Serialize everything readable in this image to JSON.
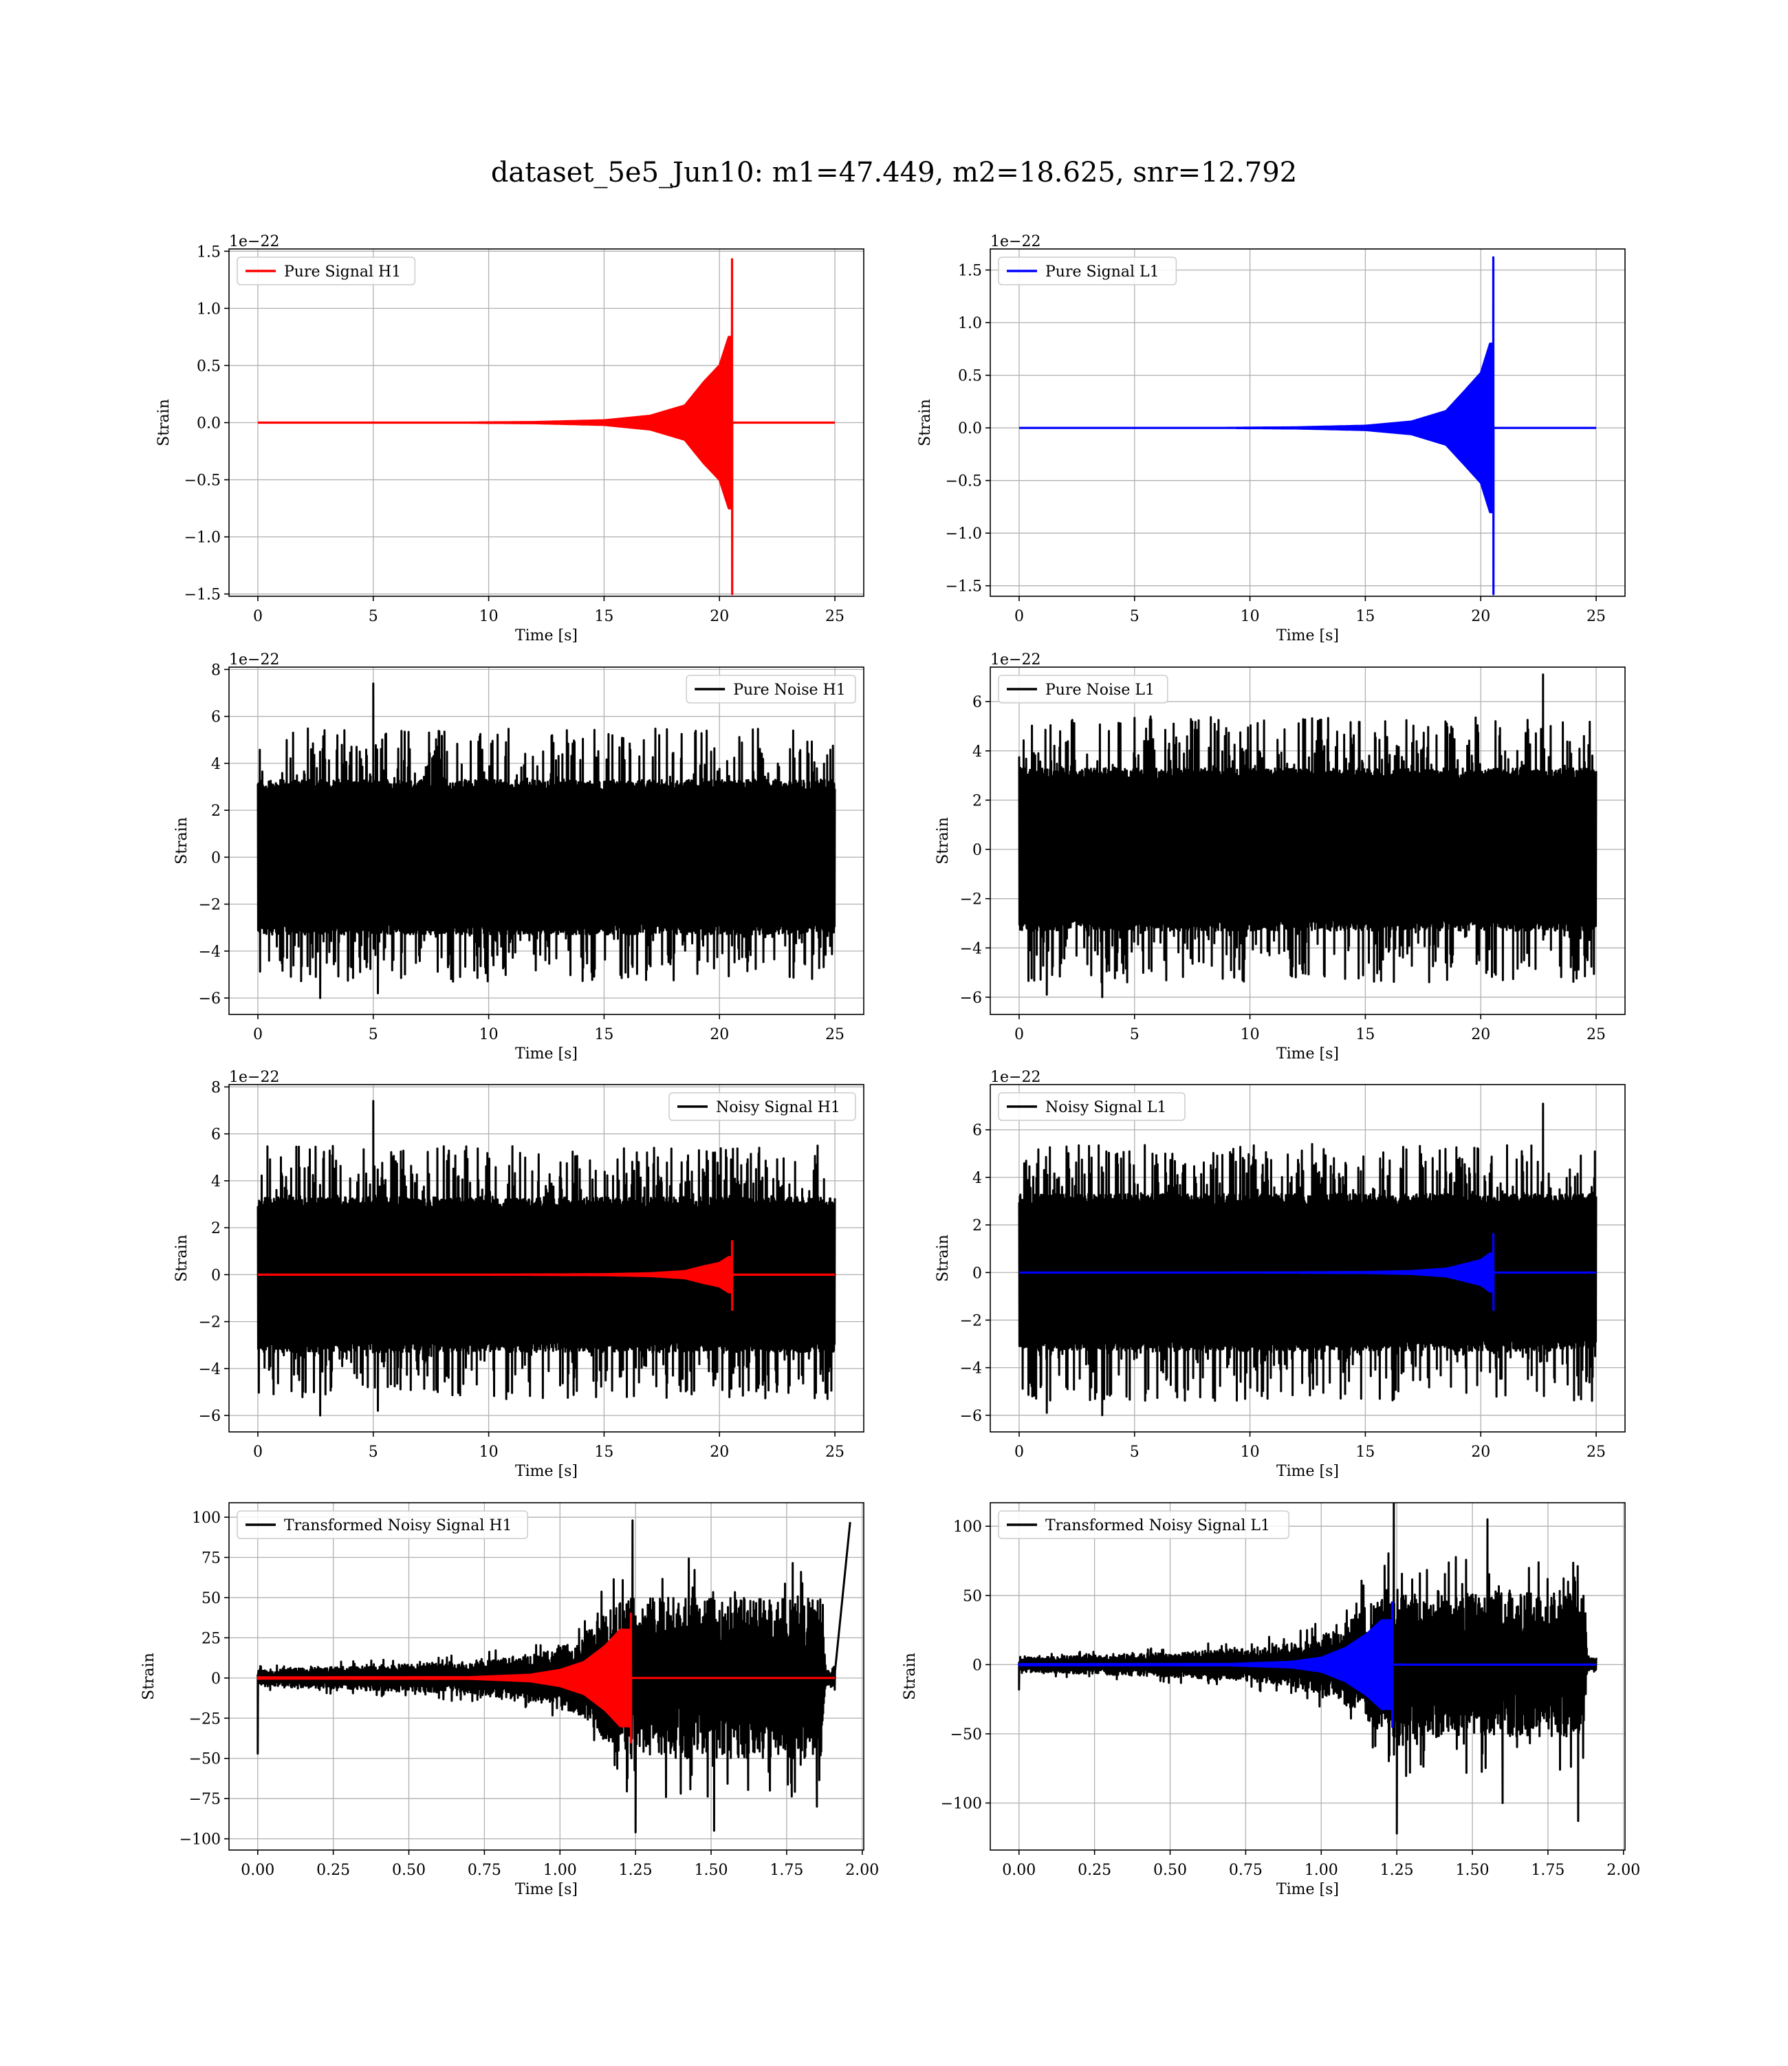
{
  "figure": {
    "suptitle": "dataset_5e5_Jun10: m1=47.449, m2=18.625, snr=12.792"
  },
  "colors": {
    "h1_signal": "#ff0000",
    "l1_signal": "#0000ff",
    "noise": "#000000",
    "grid": "#b0b0b0"
  },
  "chart_data": [
    {
      "type": "line",
      "panel": "pure-signal-h1",
      "position": "row 1, left",
      "title": "",
      "xlabel": "Time [s]",
      "ylabel": "Strain",
      "offset_text": "1e−22",
      "xlim": [
        -1.25,
        26.25
      ],
      "ylim": [
        -1.52,
        1.52
      ],
      "xticks": [
        0,
        5,
        10,
        15,
        20,
        25
      ],
      "xtick_labels": [
        "0",
        "5",
        "10",
        "15",
        "20",
        "25"
      ],
      "yticks": [
        -1.5,
        -1.0,
        -0.5,
        0.0,
        0.5,
        1.0,
        1.5
      ],
      "ytick_labels": [
        "−1.5",
        "−1.0",
        "−0.5",
        "0.0",
        "0.5",
        "1.0",
        "1.5"
      ],
      "grid": true,
      "legend_loc": "upper left",
      "series": [
        {
          "name": "Pure Signal H1",
          "color": "#ff0000",
          "kind": "chirp",
          "t_start": 0,
          "t_end": 25,
          "merger_time": 20.55,
          "peak_pos": 1.43,
          "peak_neg": -1.5,
          "early_envelope": [
            [
              12,
              0.005
            ],
            [
              15,
              0.02
            ],
            [
              17,
              0.06
            ],
            [
              18.5,
              0.15
            ],
            [
              19.3,
              0.35
            ],
            [
              20.0,
              0.5
            ],
            [
              20.4,
              0.75
            ]
          ]
        }
      ]
    },
    {
      "type": "line",
      "panel": "pure-signal-l1",
      "position": "row 1, right",
      "title": "",
      "xlabel": "Time [s]",
      "ylabel": "Strain",
      "offset_text": "1e−22",
      "xlim": [
        -1.25,
        26.25
      ],
      "ylim": [
        -1.6,
        1.7
      ],
      "xticks": [
        0,
        5,
        10,
        15,
        20,
        25
      ],
      "xtick_labels": [
        "0",
        "5",
        "10",
        "15",
        "20",
        "25"
      ],
      "yticks": [
        -1.5,
        -1.0,
        -0.5,
        0.0,
        0.5,
        1.0,
        1.5
      ],
      "ytick_labels": [
        "−1.5",
        "−1.0",
        "−0.5",
        "0.0",
        "0.5",
        "1.0",
        "1.5"
      ],
      "grid": true,
      "legend_loc": "upper left",
      "series": [
        {
          "name": "Pure Signal L1",
          "color": "#0000ff",
          "kind": "chirp",
          "t_start": 0,
          "t_end": 25,
          "merger_time": 20.55,
          "peak_pos": 1.62,
          "peak_neg": -1.58,
          "early_envelope": [
            [
              12,
              0.005
            ],
            [
              15,
              0.02
            ],
            [
              17,
              0.06
            ],
            [
              18.5,
              0.16
            ],
            [
              19.3,
              0.35
            ],
            [
              20.0,
              0.52
            ],
            [
              20.4,
              0.8
            ]
          ]
        }
      ]
    },
    {
      "type": "line",
      "panel": "pure-noise-h1",
      "position": "row 2, left",
      "title": "",
      "xlabel": "Time [s]",
      "ylabel": "Strain",
      "offset_text": "1e−22",
      "xlim": [
        -1.25,
        26.25
      ],
      "ylim": [
        -6.7,
        8.1
      ],
      "xticks": [
        0,
        5,
        10,
        15,
        20,
        25
      ],
      "xtick_labels": [
        "0",
        "5",
        "10",
        "15",
        "20",
        "25"
      ],
      "yticks": [
        -6,
        -4,
        -2,
        0,
        2,
        4,
        6,
        8
      ],
      "ytick_labels": [
        "−6",
        "−4",
        "−2",
        "0",
        "2",
        "4",
        "6",
        "8"
      ],
      "grid": true,
      "legend_loc": "upper right",
      "series": [
        {
          "name": "Pure Noise H1",
          "color": "#000000",
          "kind": "noise",
          "t_start": 0,
          "t_end": 25,
          "band": [
            -3.3,
            3.3
          ],
          "spike_max": 5.5,
          "spike_min": -5.3,
          "extremes": [
            [
              5.0,
              7.4
            ],
            [
              2.7,
              -6.0
            ],
            [
              5.2,
              -5.8
            ]
          ]
        }
      ]
    },
    {
      "type": "line",
      "panel": "pure-noise-l1",
      "position": "row 2, right",
      "title": "",
      "xlabel": "Time [s]",
      "ylabel": "Strain",
      "offset_text": "1e−22",
      "xlim": [
        -1.25,
        26.25
      ],
      "ylim": [
        -6.7,
        7.4
      ],
      "xticks": [
        0,
        5,
        10,
        15,
        20,
        25
      ],
      "xtick_labels": [
        "0",
        "5",
        "10",
        "15",
        "20",
        "25"
      ],
      "yticks": [
        -6,
        -4,
        -2,
        0,
        2,
        4,
        6
      ],
      "ytick_labels": [
        "−6",
        "−4",
        "−2",
        "0",
        "2",
        "4",
        "6"
      ],
      "grid": true,
      "legend_loc": "upper left",
      "series": [
        {
          "name": "Pure Noise L1",
          "color": "#000000",
          "kind": "noise",
          "t_start": 0,
          "t_end": 25,
          "band": [
            -3.3,
            3.3
          ],
          "spike_max": 5.4,
          "spike_min": -5.4,
          "extremes": [
            [
              22.7,
              7.1
            ],
            [
              3.6,
              -6.0
            ],
            [
              1.2,
              -5.9
            ]
          ]
        }
      ]
    },
    {
      "type": "line",
      "panel": "noisy-signal-h1",
      "position": "row 3, left",
      "title": "",
      "xlabel": "Time [s]",
      "ylabel": "Strain",
      "offset_text": "1e−22",
      "xlim": [
        -1.25,
        26.25
      ],
      "ylim": [
        -6.7,
        8.1
      ],
      "xticks": [
        0,
        5,
        10,
        15,
        20,
        25
      ],
      "xtick_labels": [
        "0",
        "5",
        "10",
        "15",
        "20",
        "25"
      ],
      "yticks": [
        -6,
        -4,
        -2,
        0,
        2,
        4,
        6,
        8
      ],
      "ytick_labels": [
        "−6",
        "−4",
        "−2",
        "0",
        "2",
        "4",
        "6",
        "8"
      ],
      "grid": true,
      "legend_loc": "upper right",
      "series": [
        {
          "name": "Noisy Signal H1",
          "color": "#000000",
          "kind": "noise",
          "t_start": 0,
          "t_end": 25,
          "band": [
            -3.3,
            3.3
          ],
          "spike_max": 5.5,
          "spike_min": -5.3,
          "extremes": [
            [
              5.0,
              7.4
            ],
            [
              2.7,
              -6.0
            ],
            [
              5.2,
              -5.8
            ]
          ]
        },
        {
          "color": "#ff0000",
          "kind": "chirp",
          "t_start": 0,
          "t_end": 25,
          "merger_time": 20.55,
          "peak_pos": 1.43,
          "peak_neg": -1.5,
          "early_envelope": [
            [
              12,
              0.005
            ],
            [
              15,
              0.02
            ],
            [
              17,
              0.06
            ],
            [
              18.5,
              0.15
            ],
            [
              19.3,
              0.35
            ],
            [
              20.0,
              0.5
            ],
            [
              20.4,
              0.75
            ]
          ]
        }
      ]
    },
    {
      "type": "line",
      "panel": "noisy-signal-l1",
      "position": "row 3, right",
      "title": "",
      "xlabel": "Time [s]",
      "ylabel": "Strain",
      "offset_text": "1e−22",
      "xlim": [
        -1.25,
        26.25
      ],
      "ylim": [
        -6.7,
        7.9
      ],
      "xticks": [
        0,
        5,
        10,
        15,
        20,
        25
      ],
      "xtick_labels": [
        "0",
        "5",
        "10",
        "15",
        "20",
        "25"
      ],
      "yticks": [
        -6,
        -4,
        -2,
        0,
        2,
        4,
        6
      ],
      "ytick_labels": [
        "−6",
        "−4",
        "−2",
        "0",
        "2",
        "4",
        "6"
      ],
      "grid": true,
      "legend_loc": "upper left",
      "series": [
        {
          "name": "Noisy Signal L1",
          "color": "#000000",
          "kind": "noise",
          "t_start": 0,
          "t_end": 25,
          "band": [
            -3.3,
            3.3
          ],
          "spike_max": 5.4,
          "spike_min": -5.4,
          "extremes": [
            [
              22.7,
              7.1
            ],
            [
              3.6,
              -6.0
            ],
            [
              1.2,
              -5.9
            ]
          ]
        },
        {
          "color": "#0000ff",
          "kind": "chirp",
          "t_start": 0,
          "t_end": 25,
          "merger_time": 20.55,
          "peak_pos": 1.62,
          "peak_neg": -1.58,
          "early_envelope": [
            [
              12,
              0.005
            ],
            [
              15,
              0.02
            ],
            [
              17,
              0.06
            ],
            [
              18.5,
              0.16
            ],
            [
              19.3,
              0.35
            ],
            [
              20.0,
              0.52
            ],
            [
              20.4,
              0.8
            ]
          ]
        }
      ]
    },
    {
      "type": "line",
      "panel": "transformed-noisy-signal-h1",
      "position": "row 4, left",
      "title": "",
      "xlabel": "Time [s]",
      "ylabel": "Strain",
      "offset_text": "",
      "xlim": [
        -0.095,
        2.005
      ],
      "ylim": [
        -107,
        109
      ],
      "xticks": [
        0.0,
        0.25,
        0.5,
        0.75,
        1.0,
        1.25,
        1.5,
        1.75,
        2.0
      ],
      "xtick_labels": [
        "0.00",
        "0.25",
        "0.50",
        "0.75",
        "1.00",
        "1.25",
        "1.50",
        "1.75",
        "2.00"
      ],
      "yticks": [
        -100,
        -75,
        -50,
        -25,
        0,
        25,
        50,
        75,
        100
      ],
      "ytick_labels": [
        "−100",
        "−75",
        "−50",
        "−25",
        "0",
        "25",
        "50",
        "75",
        "100"
      ],
      "grid": true,
      "legend_loc": "upper left",
      "series": [
        {
          "name": "Transformed Noisy Signal H1",
          "color": "#000000",
          "kind": "whitened",
          "t_start": 0,
          "t_end": 1.91,
          "envelope": [
            [
              0.0,
              5
            ],
            [
              0.4,
              8
            ],
            [
              0.7,
              10
            ],
            [
              0.9,
              14
            ],
            [
              1.05,
              22
            ],
            [
              1.12,
              35
            ],
            [
              1.22,
              50
            ],
            [
              1.5,
              50
            ],
            [
              1.87,
              50
            ],
            [
              1.88,
              5
            ],
            [
              1.91,
              5
            ]
          ],
          "extremes": [
            [
              0.0,
              -47
            ],
            [
              1.24,
              98
            ],
            [
              1.96,
              97
            ],
            [
              1.25,
              -96
            ],
            [
              1.51,
              -95
            ],
            [
              1.85,
              -80
            ]
          ]
        },
        {
          "color": "#ff0000",
          "kind": "chirp",
          "t_start": 0,
          "t_end": 1.91,
          "merger_time": 1.235,
          "peak_pos": 40,
          "peak_neg": -40,
          "early_envelope": [
            [
              0.7,
              0.5
            ],
            [
              0.9,
              2
            ],
            [
              1.0,
              5
            ],
            [
              1.08,
              10
            ],
            [
              1.15,
              20
            ],
            [
              1.2,
              30
            ]
          ]
        }
      ]
    },
    {
      "type": "line",
      "panel": "transformed-noisy-signal-l1",
      "position": "row 4, right",
      "title": "",
      "xlabel": "Time [s]",
      "ylabel": "Strain",
      "offset_text": "",
      "xlim": [
        -0.095,
        2.005
      ],
      "ylim": [
        -134,
        117
      ],
      "xticks": [
        0.0,
        0.25,
        0.5,
        0.75,
        1.0,
        1.25,
        1.5,
        1.75,
        2.0
      ],
      "xtick_labels": [
        "0.00",
        "0.25",
        "0.50",
        "0.75",
        "1.00",
        "1.25",
        "1.50",
        "1.75",
        "2.00"
      ],
      "yticks": [
        -100,
        -50,
        0,
        50,
        100
      ],
      "ytick_labels": [
        "−100",
        "−50",
        "0",
        "50",
        "100"
      ],
      "grid": true,
      "legend_loc": "upper left",
      "series": [
        {
          "name": "Transformed Noisy Signal L1",
          "color": "#000000",
          "kind": "whitened",
          "t_start": 0,
          "t_end": 1.91,
          "envelope": [
            [
              0.0,
              5
            ],
            [
              0.4,
              8
            ],
            [
              0.7,
              11
            ],
            [
              0.9,
              15
            ],
            [
              1.05,
              25
            ],
            [
              1.13,
              40
            ],
            [
              1.22,
              55
            ],
            [
              1.5,
              52
            ],
            [
              1.87,
              52
            ],
            [
              1.88,
              5
            ],
            [
              1.91,
              5
            ]
          ],
          "extremes": [
            [
              0.0,
              -18
            ],
            [
              1.24,
              118
            ],
            [
              1.55,
              105
            ],
            [
              1.25,
              -122
            ],
            [
              1.85,
              -113
            ],
            [
              1.6,
              -100
            ]
          ]
        },
        {
          "color": "#0000ff",
          "kind": "chirp",
          "t_start": 0,
          "t_end": 1.91,
          "merger_time": 1.235,
          "peak_pos": 45,
          "peak_neg": -45,
          "early_envelope": [
            [
              0.7,
              0.5
            ],
            [
              0.9,
              2
            ],
            [
              1.0,
              5
            ],
            [
              1.08,
              12
            ],
            [
              1.15,
              22
            ],
            [
              1.2,
              32
            ]
          ]
        }
      ]
    }
  ]
}
